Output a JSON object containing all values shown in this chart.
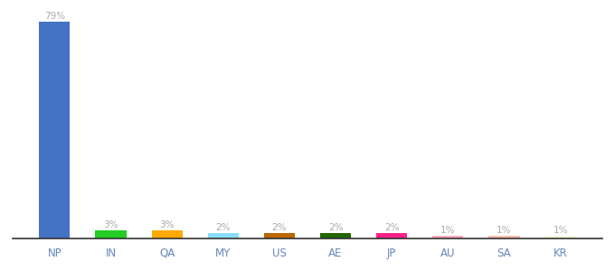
{
  "categories": [
    "NP",
    "IN",
    "QA",
    "MY",
    "US",
    "AE",
    "JP",
    "AU",
    "SA",
    "KR"
  ],
  "values": [
    79,
    3,
    3,
    2,
    2,
    2,
    2,
    1,
    1,
    1
  ],
  "bar_colors": [
    "#4472c4",
    "#22cc22",
    "#ffaa00",
    "#88ddff",
    "#bb6600",
    "#226600",
    "#ff2288",
    "#ffaabb",
    "#ffbbaa",
    "#f5f5dc"
  ],
  "background_color": "#ffffff",
  "ylim": [
    0,
    84
  ],
  "bar_width": 0.55,
  "figsize": [
    6.8,
    3.0
  ],
  "dpi": 100,
  "label_color": "#aaaaaa",
  "tick_color": "#6688bb",
  "label_fontsize": 7.5,
  "tick_fontsize": 8.5
}
